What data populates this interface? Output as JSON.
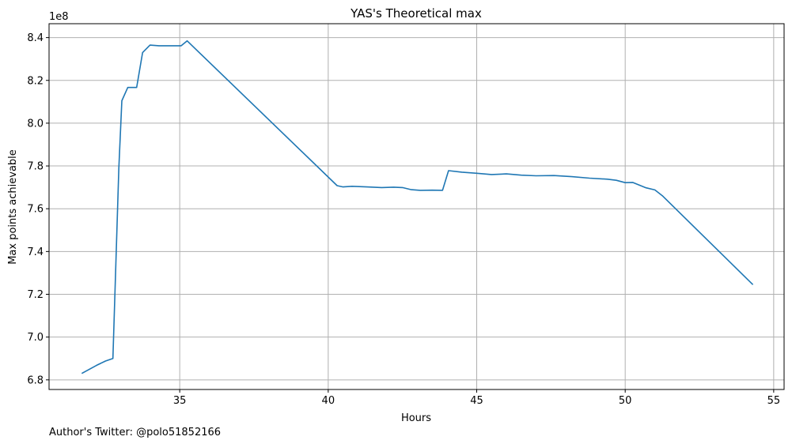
{
  "chart_data": {
    "type": "line",
    "title": "YAS's Theoretical max",
    "xlabel": "Hours",
    "ylabel": "Max points achievable",
    "y_offset_label": "1e8",
    "xlim": [
      30.6,
      55.35
    ],
    "ylim": [
      6.755,
      8.465
    ],
    "x_ticks": [
      35,
      40,
      45,
      50,
      55
    ],
    "x_tick_labels": [
      "35",
      "40",
      "45",
      "50",
      "55"
    ],
    "y_ticks": [
      6.8,
      7.0,
      7.2,
      7.4,
      7.6,
      7.8,
      8.0,
      8.2,
      8.4
    ],
    "y_tick_labels": [
      "6.8",
      "7.0",
      "7.2",
      "7.4",
      "7.6",
      "7.8",
      "8.0",
      "8.2",
      "8.4"
    ],
    "grid": true,
    "line_color": "#1f77b4",
    "series": [
      {
        "x": [
          31.7,
          32.2,
          32.5,
          32.75,
          32.95,
          33.05,
          33.25,
          33.55,
          33.75,
          34.0,
          34.3,
          34.6,
          34.85,
          35.05,
          35.25,
          40.3,
          40.5,
          40.8,
          41.3,
          41.8,
          42.2,
          42.5,
          42.8,
          43.1,
          43.5,
          43.85,
          44.05,
          44.5,
          45.0,
          45.5,
          46.0,
          46.5,
          47.0,
          47.6,
          48.2,
          48.8,
          49.4,
          49.7,
          50.0,
          50.25,
          50.7,
          51.0,
          51.25,
          54.3
        ],
        "y": [
          6.83,
          6.868,
          6.888,
          6.9,
          7.79,
          8.105,
          8.167,
          8.167,
          8.33,
          8.365,
          8.362,
          8.362,
          8.362,
          8.362,
          8.385,
          7.708,
          7.702,
          7.705,
          7.702,
          7.699,
          7.701,
          7.699,
          7.689,
          7.686,
          7.687,
          7.686,
          7.778,
          7.771,
          7.766,
          7.76,
          7.763,
          7.757,
          7.754,
          7.755,
          7.75,
          7.743,
          7.738,
          7.733,
          7.722,
          7.723,
          7.698,
          7.688,
          7.661,
          7.245
        ]
      }
    ]
  },
  "footer": {
    "credit": "Author's Twitter: @polo51852166"
  }
}
